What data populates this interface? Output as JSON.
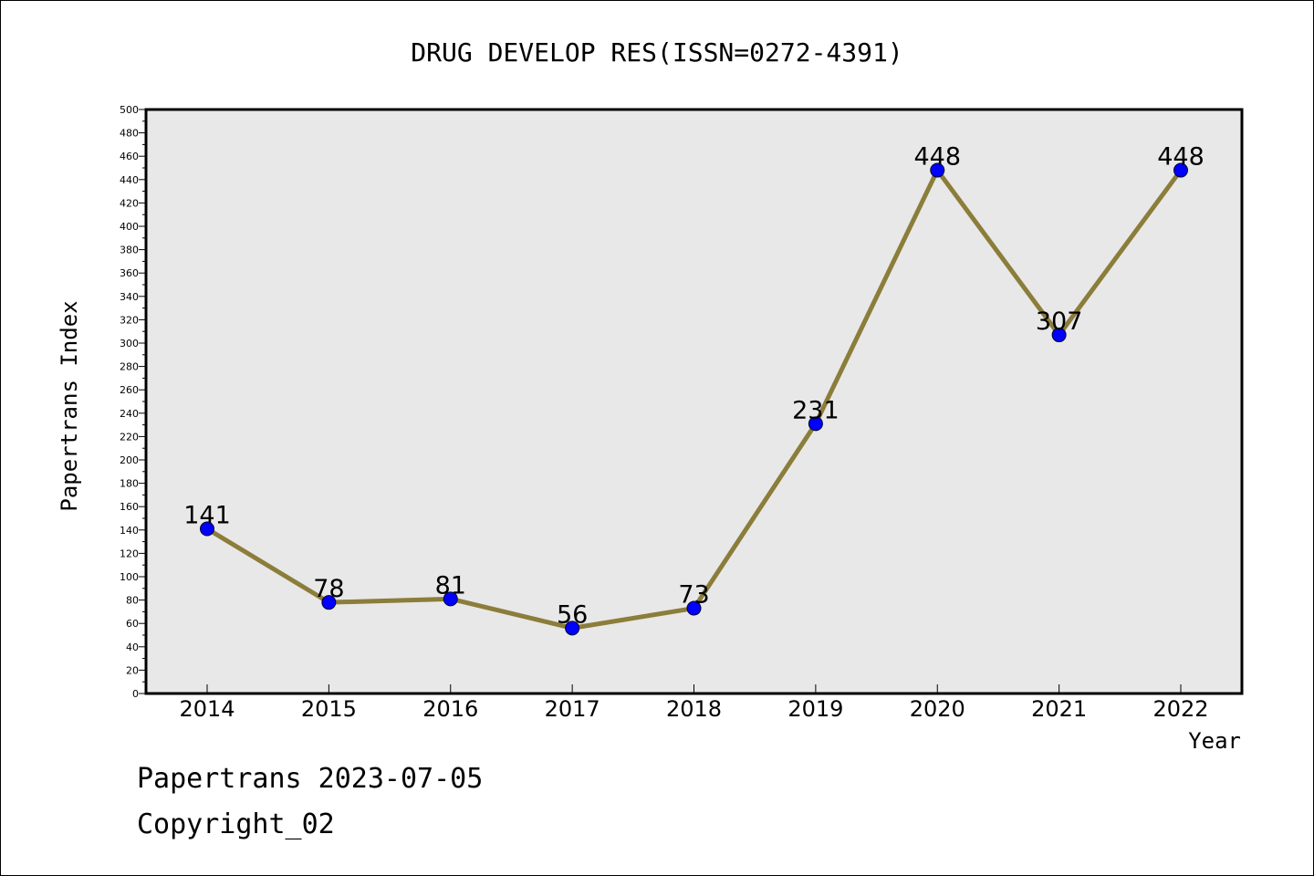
{
  "chart_data": {
    "type": "line",
    "title": "DRUG DEVELOP RES(ISSN=0272-4391)",
    "xlabel": "Year",
    "ylabel": "Papertrans Index",
    "categories": [
      "2014",
      "2015",
      "2016",
      "2017",
      "2018",
      "2019",
      "2020",
      "2021",
      "2022"
    ],
    "values": [
      141,
      78,
      81,
      56,
      73,
      231,
      448,
      307,
      448
    ],
    "data_labels": [
      "141",
      "78",
      "81",
      "56",
      "73",
      "231",
      "448",
      "307",
      "448"
    ],
    "ylim": [
      0,
      500
    ],
    "ytick_step": 20,
    "grid": false,
    "legend": "none",
    "colors": {
      "line": "#8b7d3a",
      "marker": "#0000ff",
      "plot_background": "#e8e8e8"
    }
  },
  "footer": {
    "line1": "Papertrans 2023-07-05",
    "line2": "Copyright_02"
  }
}
